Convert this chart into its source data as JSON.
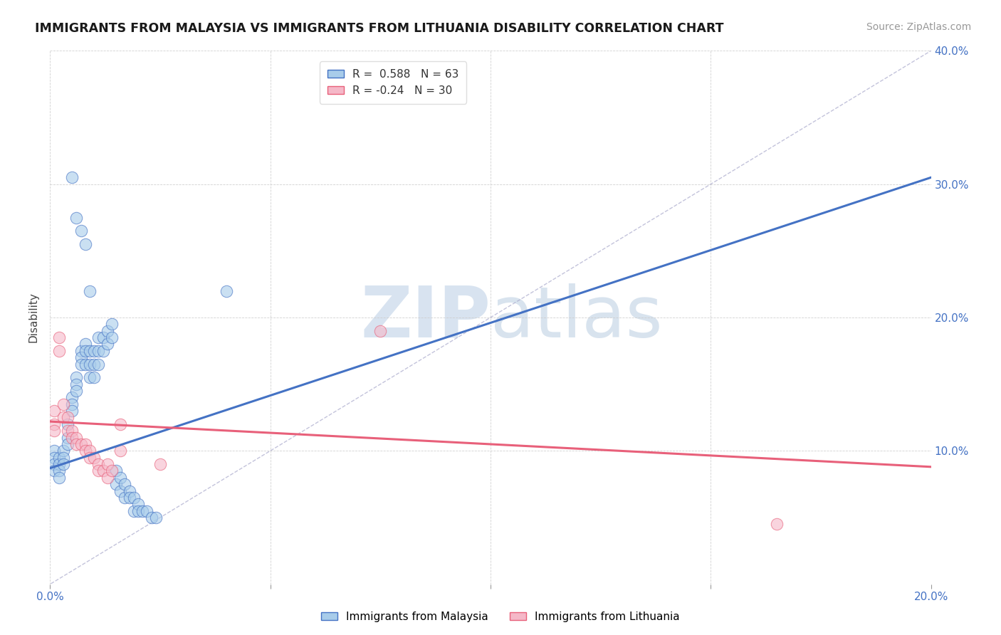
{
  "title": "IMMIGRANTS FROM MALAYSIA VS IMMIGRANTS FROM LITHUANIA DISABILITY CORRELATION CHART",
  "source": "Source: ZipAtlas.com",
  "ylabel": "Disability",
  "xlim": [
    0.0,
    0.2
  ],
  "ylim": [
    0.0,
    0.4
  ],
  "malaysia_R": 0.588,
  "malaysia_N": 63,
  "lithuania_R": -0.24,
  "lithuania_N": 30,
  "malaysia_color": "#a8ccea",
  "lithuania_color": "#f5b8c8",
  "malaysia_line_color": "#4472c4",
  "lithuania_line_color": "#e8607a",
  "malaysia_line": [
    0.0,
    0.087,
    0.2,
    0.305
  ],
  "lithuania_line": [
    0.0,
    0.122,
    0.2,
    0.088
  ],
  "malaysia_dots": [
    [
      0.001,
      0.1
    ],
    [
      0.001,
      0.095
    ],
    [
      0.001,
      0.09
    ],
    [
      0.001,
      0.085
    ],
    [
      0.002,
      0.095
    ],
    [
      0.002,
      0.09
    ],
    [
      0.002,
      0.085
    ],
    [
      0.002,
      0.08
    ],
    [
      0.003,
      0.1
    ],
    [
      0.003,
      0.095
    ],
    [
      0.003,
      0.09
    ],
    [
      0.004,
      0.12
    ],
    [
      0.004,
      0.11
    ],
    [
      0.004,
      0.105
    ],
    [
      0.005,
      0.14
    ],
    [
      0.005,
      0.135
    ],
    [
      0.005,
      0.13
    ],
    [
      0.006,
      0.155
    ],
    [
      0.006,
      0.15
    ],
    [
      0.006,
      0.145
    ],
    [
      0.007,
      0.175
    ],
    [
      0.007,
      0.17
    ],
    [
      0.007,
      0.165
    ],
    [
      0.008,
      0.18
    ],
    [
      0.008,
      0.175
    ],
    [
      0.008,
      0.165
    ],
    [
      0.009,
      0.175
    ],
    [
      0.009,
      0.165
    ],
    [
      0.009,
      0.155
    ],
    [
      0.01,
      0.175
    ],
    [
      0.01,
      0.165
    ],
    [
      0.01,
      0.155
    ],
    [
      0.011,
      0.185
    ],
    [
      0.011,
      0.175
    ],
    [
      0.011,
      0.165
    ],
    [
      0.012,
      0.185
    ],
    [
      0.012,
      0.175
    ],
    [
      0.013,
      0.19
    ],
    [
      0.013,
      0.18
    ],
    [
      0.014,
      0.195
    ],
    [
      0.014,
      0.185
    ],
    [
      0.015,
      0.085
    ],
    [
      0.015,
      0.075
    ],
    [
      0.016,
      0.08
    ],
    [
      0.016,
      0.07
    ],
    [
      0.017,
      0.075
    ],
    [
      0.017,
      0.065
    ],
    [
      0.018,
      0.07
    ],
    [
      0.018,
      0.065
    ],
    [
      0.019,
      0.065
    ],
    [
      0.019,
      0.055
    ],
    [
      0.02,
      0.06
    ],
    [
      0.02,
      0.055
    ],
    [
      0.021,
      0.055
    ],
    [
      0.022,
      0.055
    ],
    [
      0.023,
      0.05
    ],
    [
      0.024,
      0.05
    ],
    [
      0.005,
      0.305
    ],
    [
      0.006,
      0.275
    ],
    [
      0.007,
      0.265
    ],
    [
      0.008,
      0.255
    ],
    [
      0.009,
      0.22
    ],
    [
      0.04,
      0.22
    ]
  ],
  "lithuania_dots": [
    [
      0.001,
      0.13
    ],
    [
      0.001,
      0.12
    ],
    [
      0.001,
      0.115
    ],
    [
      0.002,
      0.185
    ],
    [
      0.002,
      0.175
    ],
    [
      0.003,
      0.135
    ],
    [
      0.003,
      0.125
    ],
    [
      0.004,
      0.125
    ],
    [
      0.004,
      0.115
    ],
    [
      0.005,
      0.115
    ],
    [
      0.005,
      0.11
    ],
    [
      0.006,
      0.11
    ],
    [
      0.006,
      0.105
    ],
    [
      0.007,
      0.105
    ],
    [
      0.008,
      0.105
    ],
    [
      0.008,
      0.1
    ],
    [
      0.009,
      0.1
    ],
    [
      0.009,
      0.095
    ],
    [
      0.01,
      0.095
    ],
    [
      0.011,
      0.09
    ],
    [
      0.011,
      0.085
    ],
    [
      0.012,
      0.085
    ],
    [
      0.013,
      0.09
    ],
    [
      0.013,
      0.08
    ],
    [
      0.014,
      0.085
    ],
    [
      0.016,
      0.12
    ],
    [
      0.016,
      0.1
    ],
    [
      0.075,
      0.19
    ],
    [
      0.165,
      0.045
    ],
    [
      0.025,
      0.09
    ]
  ],
  "watermark_zip": "ZIP",
  "watermark_atlas": "atlas"
}
